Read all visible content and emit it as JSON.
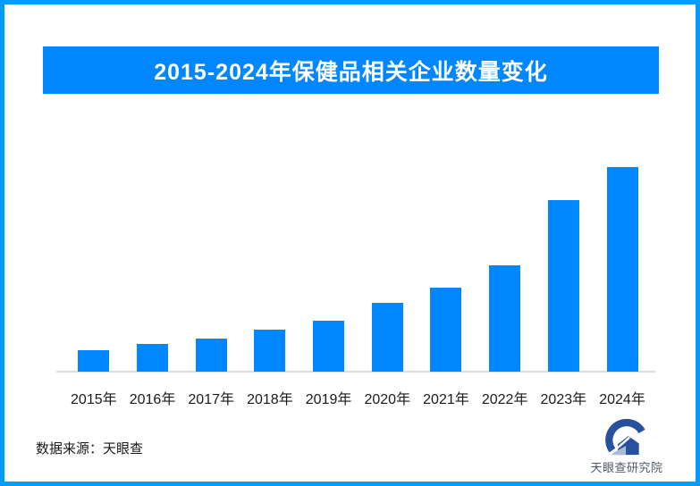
{
  "frame": {
    "border_color": "#009DFF",
    "background": "#FFFFFF"
  },
  "banner": {
    "title": "2015-2024年保健品相关企业数量变化",
    "background": "#0086FF",
    "text_color": "#FFFFFF"
  },
  "chart_data": {
    "type": "bar",
    "title": "2015-2024年保健品相关企业数量变化",
    "categories": [
      "2015年",
      "2016年",
      "2017年",
      "2018年",
      "2019年",
      "2020年",
      "2021年",
      "2022年",
      "2023年",
      "2024年"
    ],
    "values": [
      10.5,
      13.5,
      16.2,
      20.5,
      24.9,
      33.6,
      41.0,
      52.0,
      83.8,
      100.0
    ],
    "value_note": "no value axis or data labels shown; values estimated from bar heights, indexed to 2024 = 100",
    "bar_color": "#0086FF",
    "axis_line_color": "#DCDCDC",
    "xlabel": "",
    "ylabel": "",
    "grid": false,
    "legend": "none"
  },
  "footer": {
    "source_label": "数据来源：天眼查",
    "logo_text": "天眼查研究院",
    "logo_primary_color": "#27509F",
    "logo_light_color": "#A9BBD9"
  }
}
